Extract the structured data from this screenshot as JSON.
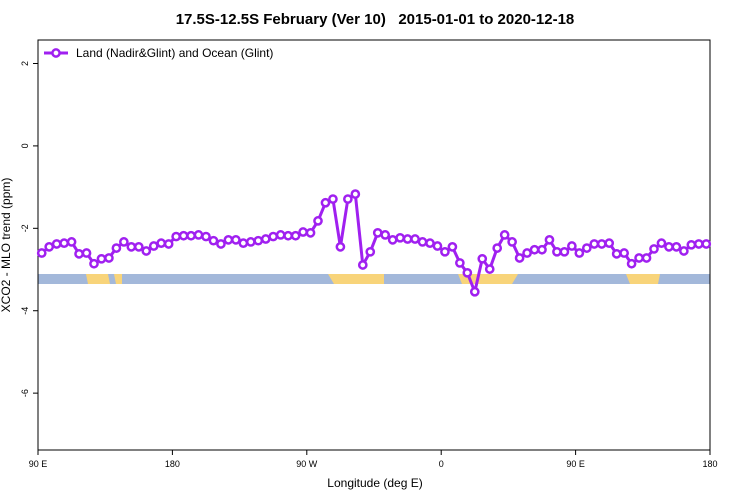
{
  "chart_data": {
    "type": "line",
    "title": "17.5S-12.5S February (Ver 10)   2015-01-01 to 2020-12-18",
    "xlabel": "Longitude (deg E)",
    "ylabel": "XCO2 - MLO trend (ppm)",
    "xlim": [
      90,
      540
    ],
    "xticks": [
      {
        "value": 90,
        "label": "90 E"
      },
      180,
      {
        "value": 270,
        "label": "90 W"
      },
      {
        "value": 360,
        "label": "0"
      },
      {
        "value": 450,
        "label": "90 E"
      },
      {
        "value": 540,
        "label": "180"
      }
    ],
    "ylim": [
      -7.38,
      2.57
    ],
    "yticks": [
      2,
      0,
      -2,
      -4,
      -6
    ],
    "legend": "top-left",
    "x": [
      92.5,
      97.5,
      102.5,
      107.5,
      112.5,
      117.5,
      122.5,
      127.5,
      132.5,
      137.5,
      142.5,
      147.5,
      152.5,
      157.5,
      162.5,
      167.5,
      172.5,
      177.5,
      182.5,
      187.5,
      192.5,
      197.5,
      202.5,
      207.5,
      212.5,
      217.5,
      222.5,
      227.5,
      232.5,
      237.5,
      242.5,
      247.5,
      252.5,
      257.5,
      262.5,
      267.5,
      272.5,
      277.5,
      282.5,
      287.5,
      292.5,
      297.5,
      302.5,
      307.5,
      312.5,
      317.5,
      322.5,
      327.5,
      332.5,
      337.5,
      342.5,
      347.5,
      352.5,
      357.5,
      362.5,
      367.5,
      372.5,
      377.5,
      382.5,
      387.5,
      392.5,
      397.5,
      402.5,
      407.5,
      412.5,
      417.5,
      422.5,
      427.5,
      432.5,
      437.5,
      442.5,
      447.5,
      452.5,
      457.5,
      462.5,
      467.5,
      472.5,
      477.5,
      482.5,
      487.5,
      492.5,
      497.5,
      502.5,
      507.5,
      512.5,
      517.5,
      522.5,
      527.5,
      532.5,
      537.5
    ],
    "series": [
      {
        "name": "Land (Nadir&Glint) and Ocean (Glint)",
        "color": "#a020f0",
        "values": [
          -2.6,
          -2.45,
          -2.38,
          -2.36,
          -2.33,
          -2.62,
          -2.6,
          -2.86,
          -2.74,
          -2.72,
          -2.48,
          -2.33,
          -2.45,
          -2.45,
          -2.55,
          -2.43,
          -2.36,
          -2.38,
          -2.2,
          -2.18,
          -2.18,
          -2.16,
          -2.2,
          -2.3,
          -2.38,
          -2.28,
          -2.28,
          -2.36,
          -2.33,
          -2.3,
          -2.26,
          -2.2,
          -2.16,
          -2.18,
          -2.18,
          -2.09,
          -2.11,
          -1.82,
          -1.38,
          -1.29,
          -2.45,
          -1.29,
          -1.17,
          -2.89,
          -2.57,
          -2.11,
          -2.16,
          -2.28,
          -2.23,
          -2.26,
          -2.26,
          -2.33,
          -2.36,
          -2.43,
          -2.57,
          -2.45,
          -2.84,
          -3.08,
          -3.54,
          -2.74,
          -2.99,
          -2.48,
          -2.16,
          -2.33,
          -2.72,
          -2.6,
          -2.52,
          -2.52,
          -2.28,
          -2.57,
          -2.57,
          -2.43,
          -2.6,
          -2.48,
          -2.38,
          -2.38,
          -2.36,
          -2.62,
          -2.6,
          -2.86,
          -2.72,
          -2.72,
          -2.5,
          -2.36,
          -2.45,
          -2.45,
          -2.55,
          -2.4,
          -2.38,
          -2.38
        ]
      }
    ]
  }
}
